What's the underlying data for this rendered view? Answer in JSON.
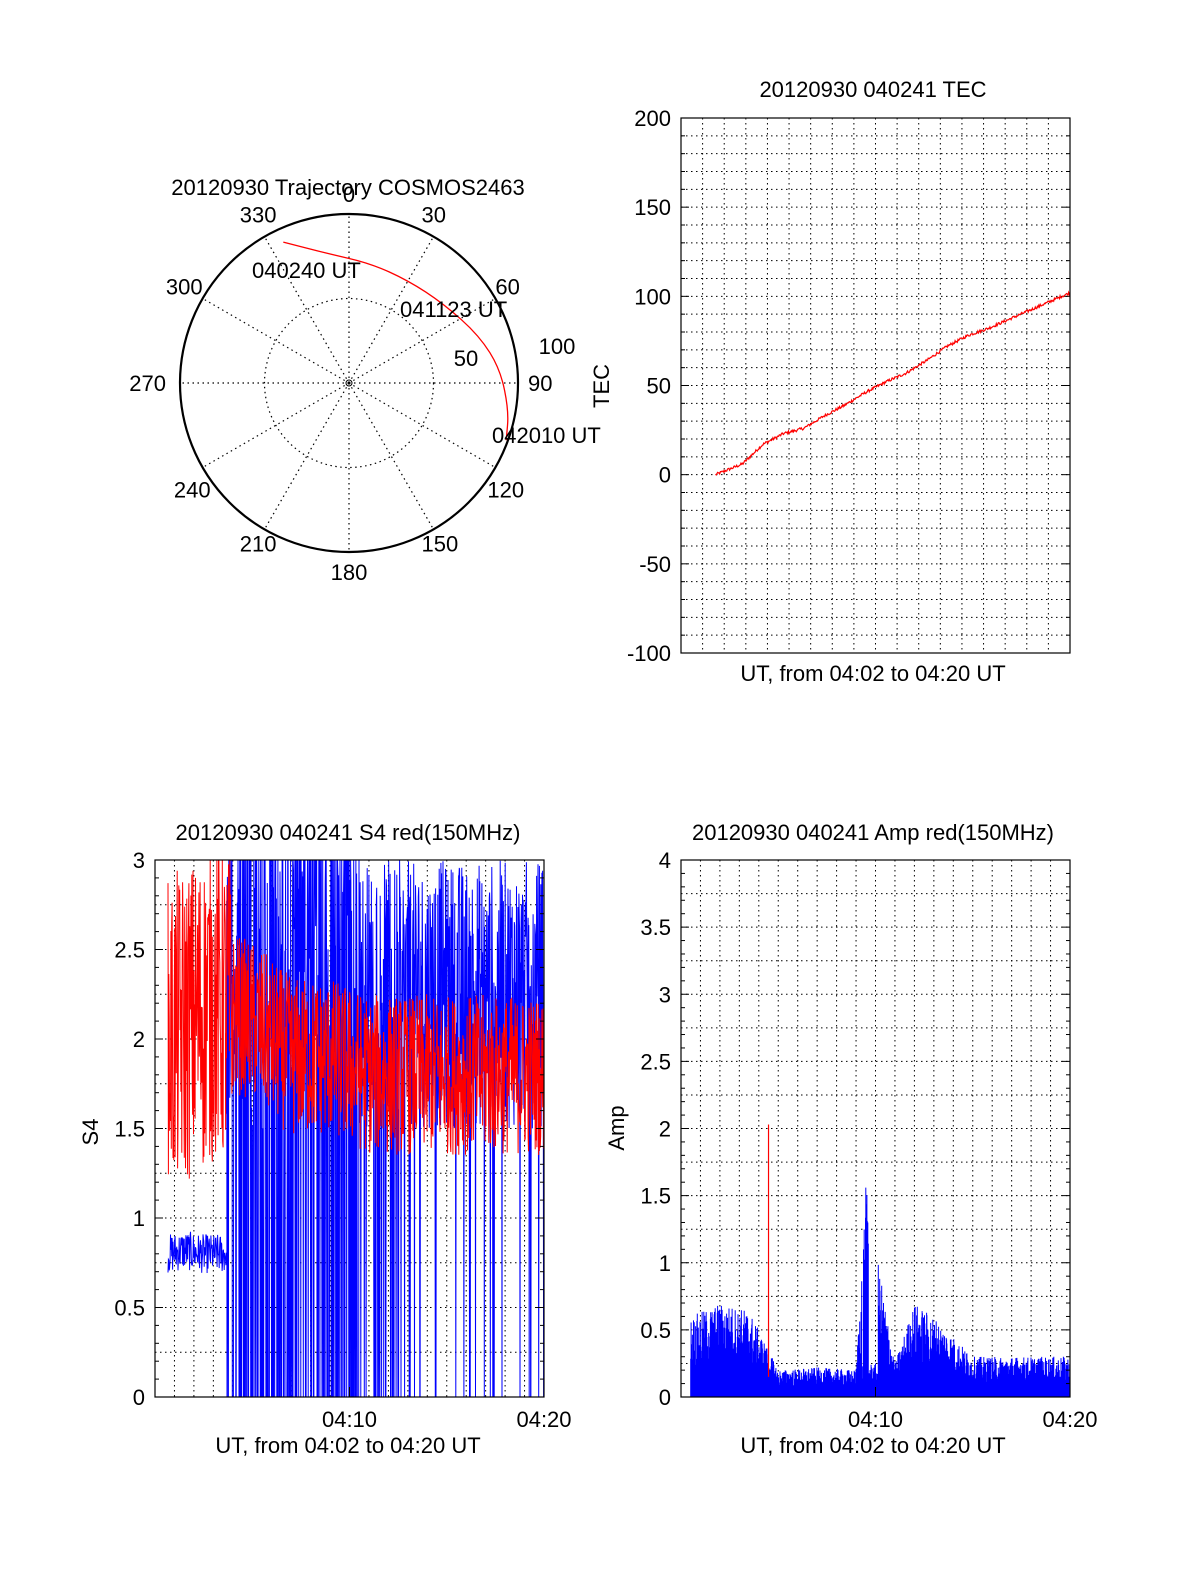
{
  "chart_data": [
    {
      "type": "polar",
      "title": "20120930 Trajectory COSMOS2463",
      "angle_labels": [
        "0",
        "30",
        "60",
        "90",
        "120",
        "150",
        "180",
        "210",
        "240",
        "270",
        "300",
        "330"
      ],
      "angles_deg": [
        0,
        30,
        60,
        90,
        120,
        150,
        180,
        210,
        240,
        270,
        300,
        330
      ],
      "radial_labels": [
        "50",
        "100"
      ],
      "radial_values": [
        50,
        100
      ],
      "rlim": [
        0,
        100
      ],
      "grid": true,
      "annotations": {
        "start": "040240 UT",
        "mid": "041123 UT",
        "end": "042010 UT"
      },
      "trajectory": {
        "name": "",
        "color": "#ff0000",
        "points": [
          {
            "az": 335,
            "r": 92
          },
          {
            "az": 350,
            "r": 78
          },
          {
            "az": 10,
            "r": 72
          },
          {
            "az": 30,
            "r": 70
          },
          {
            "az": 50,
            "r": 73
          },
          {
            "az": 70,
            "r": 82
          },
          {
            "az": 85,
            "r": 90
          },
          {
            "az": 100,
            "r": 96
          },
          {
            "az": 110,
            "r": 99
          }
        ]
      },
      "colors": {
        "frame": "#000000",
        "trajectory": "#ff0000"
      }
    },
    {
      "type": "line",
      "title": "20120930 040241 TEC",
      "xlabel": "UT, from 04:02 to 04:20 UT",
      "ylabel": "TEC",
      "xlim": [
        "04:01",
        "04:20"
      ],
      "ylim": [
        -100,
        200
      ],
      "yticks": [
        "-100",
        "-50",
        "0",
        "50",
        "100",
        "150",
        "200"
      ],
      "grid": true,
      "series": [
        {
          "name": "",
          "color": "#ff0000",
          "x": [
            "04:02:41",
            "04:04:00",
            "04:05:00",
            "04:06:00",
            "04:07:00",
            "04:08:00",
            "04:09:00",
            "04:10:00",
            "04:11:00",
            "04:12:00",
            "04:13:00",
            "04:14:00",
            "04:15:00",
            "04:16:00",
            "04:17:00",
            "04:18:00",
            "04:19:00",
            "04:20:00"
          ],
          "values": [
            0,
            6,
            17,
            23,
            26,
            33,
            39,
            46,
            52,
            57,
            64,
            72,
            78,
            82,
            87,
            92,
            97,
            102
          ]
        }
      ]
    },
    {
      "type": "line",
      "title": "20120930 040241 S4 red(150MHz)",
      "xlabel": "UT, from 04:02 to 04:20 UT",
      "ylabel": "S4",
      "xlim": [
        "04:00",
        "04:20"
      ],
      "ylim": [
        0,
        3
      ],
      "xticks": [
        "04:10",
        "04:20"
      ],
      "yticks": [
        "0",
        "0.5",
        "1",
        "1.5",
        "2",
        "2.5",
        "3"
      ],
      "grid": true,
      "series": [
        {
          "name": "",
          "color": "#ff0000",
          "x": [
            "04:00:40",
            "04:03:00",
            "04:05:00",
            "04:07:00",
            "04:09:00",
            "04:11:00",
            "04:13:00",
            "04:15:00",
            "04:17:00",
            "04:19:00",
            "04:20:00"
          ],
          "values": [
            2.0,
            2.2,
            2.1,
            1.9,
            1.9,
            1.8,
            1.8,
            1.8,
            1.8,
            1.8,
            1.8
          ],
          "band": [
            1.3,
            3.0
          ]
        },
        {
          "name": "",
          "color": "#0000ff",
          "x": [
            "04:00:40",
            "04:01:30",
            "04:02:30",
            "04:03:40"
          ],
          "values": [
            0.8,
            0.82,
            0.8,
            0.8
          ]
        }
      ]
    },
    {
      "type": "line",
      "title": "20120930 040241 Amp red(150MHz)",
      "xlabel": "UT, from 04:02 to 04:20 UT",
      "ylabel": "Amp",
      "xlim": [
        "04:00",
        "04:20"
      ],
      "ylim": [
        0,
        4
      ],
      "xticks": [
        "04:10",
        "04:20"
      ],
      "yticks": [
        "0",
        "0.5",
        "1",
        "1.5",
        "2",
        "2.5",
        "3",
        "3.5",
        "4"
      ],
      "grid": true,
      "series": [
        {
          "name": "",
          "color": "#0000ff",
          "x": [
            "04:00:30",
            "04:02:00",
            "04:03:30",
            "04:05:00",
            "04:07:00",
            "04:09:00",
            "04:09:30",
            "04:11:00",
            "04:12:00",
            "04:13:00",
            "04:15:00",
            "04:17:00",
            "04:19:00",
            "04:20:00"
          ],
          "values": [
            0.6,
            0.7,
            0.65,
            0.2,
            0.22,
            0.2,
            1.56,
            0.25,
            0.7,
            0.6,
            0.3,
            0.3,
            0.3,
            0.3
          ]
        },
        {
          "name": "",
          "color": "#ff0000",
          "spike": {
            "x": "04:04:30",
            "value": 2.03
          }
        }
      ]
    }
  ]
}
